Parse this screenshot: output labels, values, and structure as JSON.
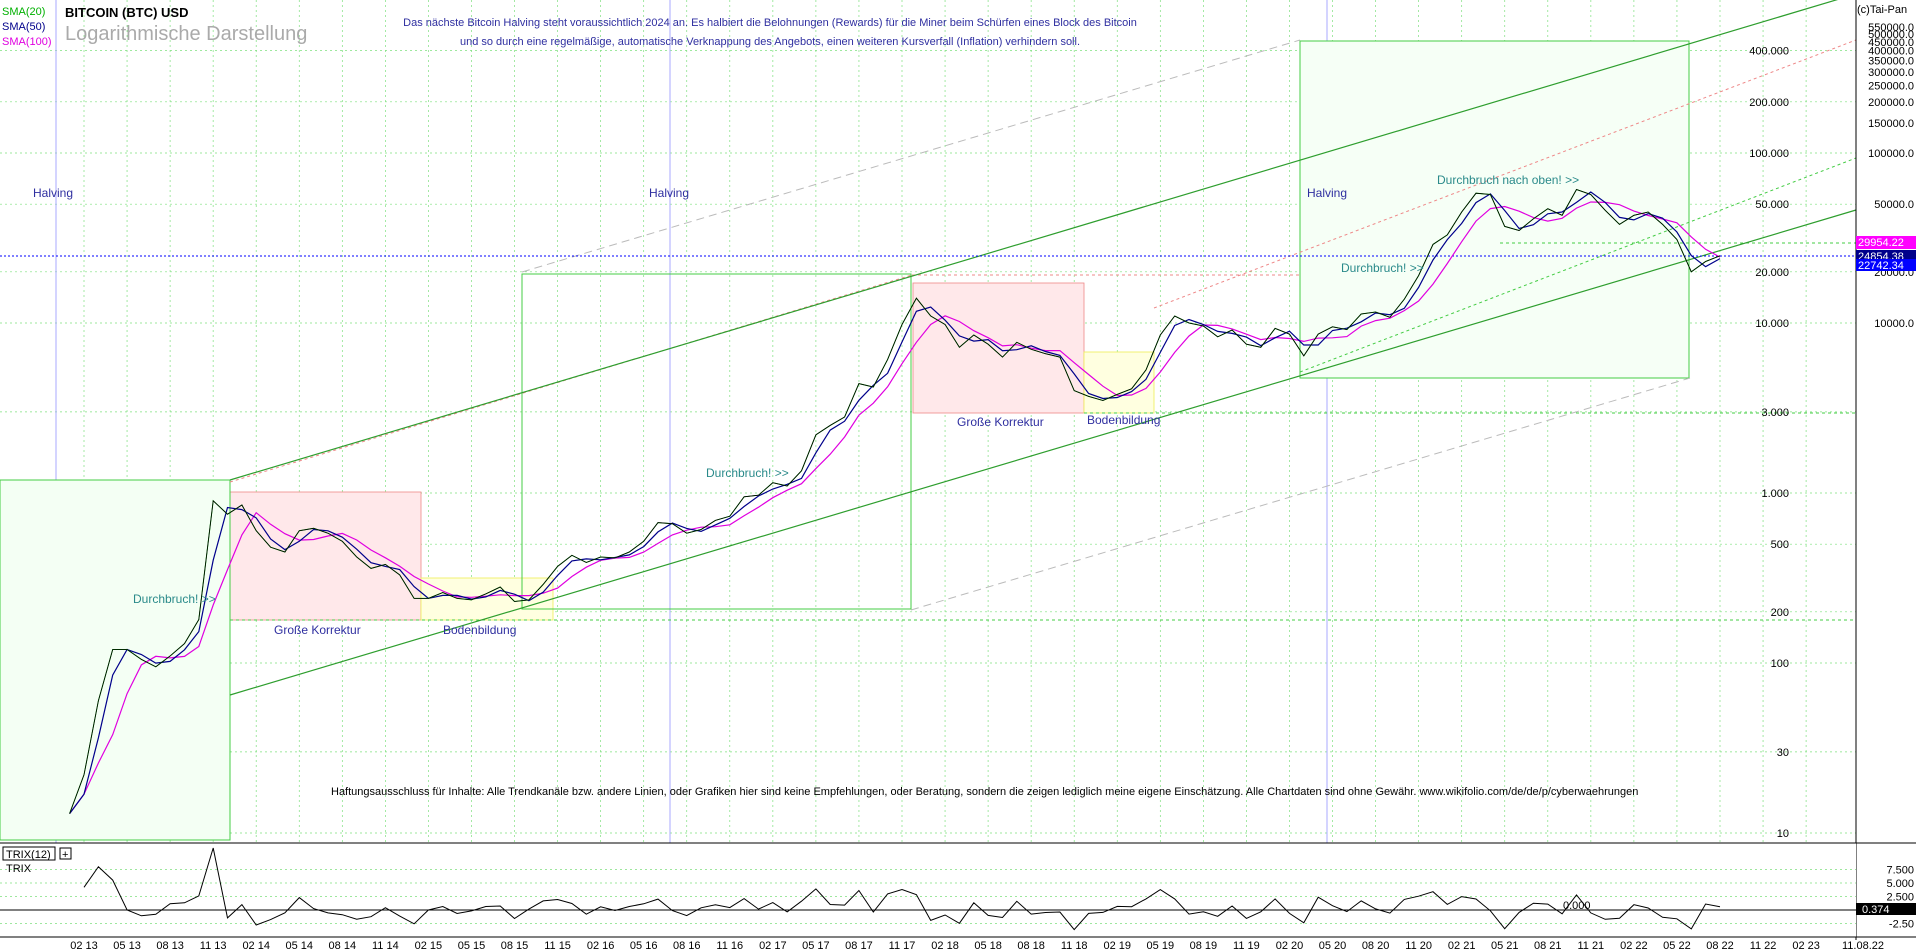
{
  "header": {
    "title": "BITCOIN (BTC) USD",
    "subtitle": "Logarithmische Darstellung",
    "sma_labels": [
      "SMA(20)",
      "SMA(50)",
      "SMA(100)"
    ],
    "copyright": "(c)Tai-Pan",
    "note_line1": "Das nächste Bitcoin Halving steht voraussichtlich 2024 an. Es halbiert die Belohnungen (Rewards) für die Miner beim Schürfen eines Block des Bitcoin",
    "note_line2": "und so durch eine regelmäßige, automatische Verknappung des Angebots, einen weiteren Kursverfall (Inflation) verhindern soll."
  },
  "disclaimer": "Haftungsausschluss für Inhalte: Alle Trendkanäle bzw. andere Linien, oder Grafiken hier sind keine Empfehlungen, oder Beratung, sondern die zeigen lediglich meine eigene Einschätzung. Alle Chartdaten sind ohne Gewähr.  www.wikifolio.com/de/de/p/cyberwaehrungen",
  "annotations": {
    "halving1": "Halving",
    "halving2": "Halving",
    "halving3": "Halving",
    "durchbruch1": "Durchbruch! >>",
    "durchbruch2": "Durchbruch! >>",
    "durchbruch3": "Durchbruch! >>",
    "durchbruch_oben": "Durchbruch nach oben! >>",
    "korrektur1": "Große Korrektur",
    "korrektur2": "Große Korrektur",
    "boden1": "Bodenbildung",
    "boden2": "Bodenbildung"
  },
  "price_tags": {
    "tag1": "29954.22",
    "tag2": "24854.38",
    "tag3": "22742.34"
  },
  "indicator": {
    "name": "TRIX(12)",
    "line_label": "TRIX",
    "ticks": [
      "7.500",
      "5.000",
      "2.500",
      "-2.50"
    ],
    "current": "0.374",
    "zero_label": "0.000"
  },
  "end_date": "11.08.22",
  "colors": {
    "sma20": "#00b000",
    "sma50": "#00008b",
    "sma100": "#e000e0",
    "channel": "#2e9e2e",
    "grid": "#7ee07e",
    "halving_line": "#aaaaff",
    "correction_box": "#ffe8ea",
    "bottom_box": "#ffffe0",
    "price_line": "#0000ff",
    "annotation_text": "#2f2fa0",
    "breakout_text": "#2a8a8a"
  },
  "chart_data": {
    "type": "line",
    "yscale": "log",
    "title": "BITCOIN (BTC) USD",
    "subtitle": "Logarithmische Darstellung",
    "y_ticks": [
      10,
      30,
      100,
      200,
      500,
      1000,
      3000,
      10000,
      20000,
      50000,
      100000,
      200000,
      400000
    ],
    "y_tick_labels": [
      "10",
      "30",
      "100",
      "200",
      "500",
      "1.000",
      "3.000",
      "10.000",
      "20.000",
      "50.000",
      "100.000",
      "200.000",
      "400.000"
    ],
    "y_tick_labels_right": [
      "10000.0",
      "20000.0",
      "50000.0",
      "100000.0",
      "150000.0",
      "200000.0",
      "250000.0",
      "300000.0",
      "350000.0",
      "400000.0",
      "450000.0",
      "500000.0",
      "550000.0"
    ],
    "x_tick_labels": [
      "02 13",
      "05 13",
      "08 13",
      "11 13",
      "02 14",
      "05 14",
      "08 14",
      "11 14",
      "02 15",
      "05 15",
      "08 15",
      "11 15",
      "02 16",
      "05 16",
      "08 16",
      "11 16",
      "02 17",
      "05 17",
      "08 17",
      "11 17",
      "02 18",
      "05 18",
      "08 18",
      "11 18",
      "02 19",
      "05 19",
      "08 19",
      "11 19",
      "02 20",
      "05 20",
      "08 20",
      "11 20",
      "02 21",
      "05 21",
      "08 21",
      "11 21",
      "02 22",
      "05 22",
      "08 22",
      "11 22",
      "02 23"
    ],
    "xlim": [
      "2012-12",
      "2023-03"
    ],
    "ylim": [
      8,
      600000
    ],
    "grid": true,
    "series": [
      {
        "name": "BTC",
        "x": [
          "2013-01",
          "2013-02",
          "2013-03",
          "2013-04",
          "2013-05",
          "2013-06",
          "2013-07",
          "2013-08",
          "2013-09",
          "2013-10",
          "2013-11",
          "2013-12",
          "2014-01",
          "2014-02",
          "2014-03",
          "2014-04",
          "2014-05",
          "2014-06",
          "2014-07",
          "2014-08",
          "2014-09",
          "2014-10",
          "2014-11",
          "2014-12",
          "2015-01",
          "2015-02",
          "2015-03",
          "2015-04",
          "2015-05",
          "2015-06",
          "2015-07",
          "2015-08",
          "2015-09",
          "2015-10",
          "2015-11",
          "2015-12",
          "2016-01",
          "2016-02",
          "2016-03",
          "2016-04",
          "2016-05",
          "2016-06",
          "2016-07",
          "2016-08",
          "2016-09",
          "2016-10",
          "2016-11",
          "2016-12",
          "2017-01",
          "2017-02",
          "2017-03",
          "2017-04",
          "2017-05",
          "2017-06",
          "2017-07",
          "2017-08",
          "2017-09",
          "2017-10",
          "2017-11",
          "2017-12",
          "2018-01",
          "2018-02",
          "2018-03",
          "2018-04",
          "2018-05",
          "2018-06",
          "2018-07",
          "2018-08",
          "2018-09",
          "2018-10",
          "2018-11",
          "2018-12",
          "2019-01",
          "2019-02",
          "2019-03",
          "2019-04",
          "2019-05",
          "2019-06",
          "2019-07",
          "2019-08",
          "2019-09",
          "2019-10",
          "2019-11",
          "2019-12",
          "2020-01",
          "2020-02",
          "2020-03",
          "2020-04",
          "2020-05",
          "2020-06",
          "2020-07",
          "2020-08",
          "2020-09",
          "2020-10",
          "2020-11",
          "2020-12",
          "2021-01",
          "2021-02",
          "2021-03",
          "2021-04",
          "2021-05",
          "2021-06",
          "2021-07",
          "2021-08",
          "2021-09",
          "2021-10",
          "2021-11",
          "2021-12",
          "2022-01",
          "2022-02",
          "2022-03",
          "2022-04",
          "2022-05",
          "2022-06",
          "2022-07",
          "2022-08"
        ],
        "values": [
          13,
          22,
          60,
          120,
          120,
          105,
          95,
          110,
          130,
          180,
          900,
          750,
          850,
          600,
          480,
          450,
          600,
          620,
          580,
          520,
          420,
          360,
          380,
          330,
          240,
          240,
          260,
          240,
          235,
          255,
          280,
          230,
          235,
          290,
          370,
          430,
          390,
          420,
          415,
          450,
          520,
          670,
          660,
          580,
          610,
          690,
          730,
          950,
          970,
          1150,
          1100,
          1350,
          2200,
          2500,
          2800,
          4400,
          4200,
          6100,
          9800,
          14000,
          11000,
          9800,
          7200,
          8500,
          7500,
          6300,
          7700,
          7000,
          6600,
          6300,
          4000,
          3700,
          3500,
          3800,
          4100,
          5300,
          8500,
          11000,
          10000,
          9600,
          8300,
          9100,
          7500,
          7200,
          9300,
          8600,
          6400,
          8600,
          9500,
          9150,
          11300,
          11600,
          10800,
          13800,
          19000,
          29000,
          33000,
          45000,
          58000,
          57000,
          37000,
          35000,
          41000,
          47000,
          43000,
          61000,
          57000,
          46000,
          38000,
          43000,
          45000,
          38000,
          31000,
          20000,
          23000,
          24854
        ]
      }
    ],
    "sma": [
      "SMA(20)",
      "SMA(50)",
      "SMA(100)"
    ],
    "annotations": [
      "Halving",
      "Halving",
      "Halving",
      "Durchbruch! >>",
      "Durchbruch! >>",
      "Durchbruch! >>",
      "Durchbruch nach oben! >>",
      "Große Korrektur",
      "Große Korrektur",
      "Bodenbildung",
      "Bodenbildung"
    ],
    "current_price": 24854.38
  }
}
